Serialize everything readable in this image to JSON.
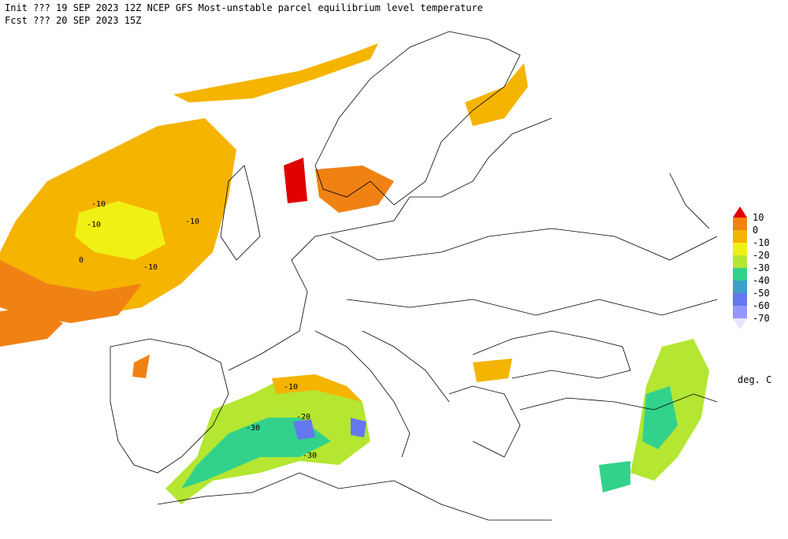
{
  "header": {
    "line1": "Init  ??? 19 SEP 2023 12Z  NCEP GFS Most-unstable parcel equilibrium level temperature",
    "line2": "Fcst ??? 20 SEP 2023 15Z"
  },
  "legend": {
    "levels": [
      10,
      0,
      -10,
      -20,
      -30,
      -40,
      -50,
      -60,
      -70
    ],
    "colors": [
      "#e00000",
      "#f08214",
      "#f5b400",
      "#f0f014",
      "#b4e632",
      "#32d28c",
      "#3ca0c8",
      "#6478f0",
      "#9696ff",
      "#c8c8ff",
      "#e6e6ff"
    ],
    "unit": "deg. C"
  },
  "contour_labels": [
    -10,
    -10,
    -10,
    -10,
    0,
    -10,
    -20,
    -30,
    -30
  ]
}
